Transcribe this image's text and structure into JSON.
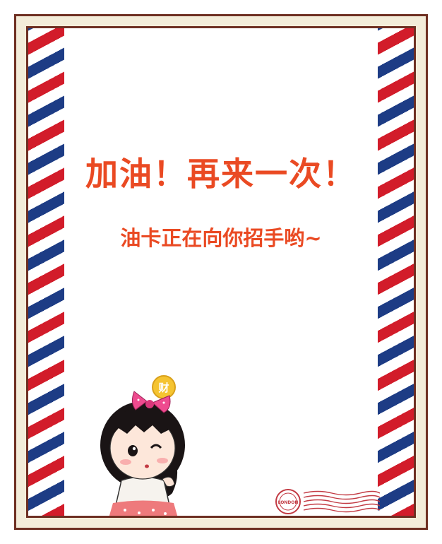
{
  "message": {
    "headline": "加油！再来一次！",
    "subline": "油卡正在向你招手哟~"
  },
  "decoration": {
    "coin_text": "财",
    "postmark_text": "LONDON"
  },
  "colors": {
    "accent": "#ea4a23",
    "frame": "#6e2f22",
    "stripe_red": "#d21c2a",
    "stripe_blue": "#1d3c85",
    "background": "#f3ecd9"
  }
}
